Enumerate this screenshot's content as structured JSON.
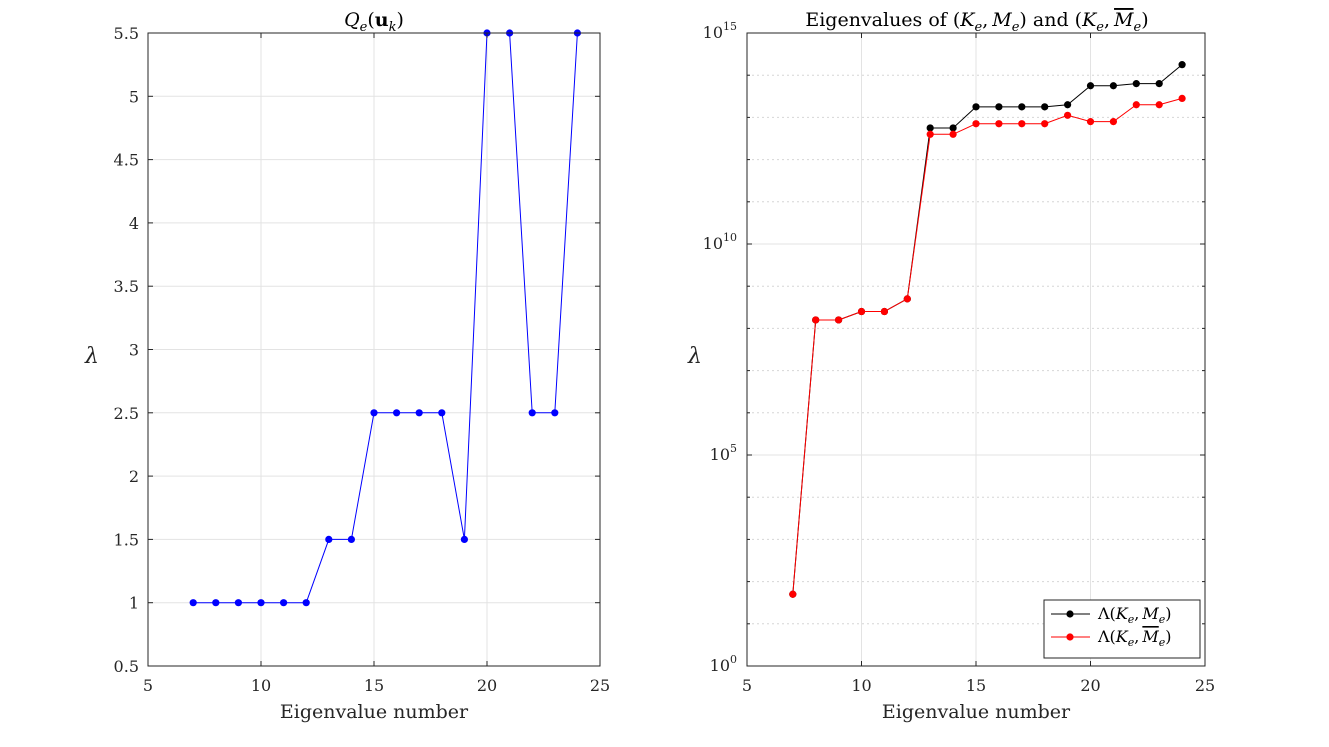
{
  "chart_data": [
    {
      "type": "line",
      "title": "Q_e(u_k)",
      "title_parts": [
        "Q",
        "e",
        "(",
        "u",
        "k",
        ")"
      ],
      "xlabel": "Eigenvalue number",
      "ylabel": "λ",
      "xlim": [
        5,
        25
      ],
      "ylim": [
        0.5,
        5.5
      ],
      "yscale": "linear",
      "xticks": [
        5,
        10,
        15,
        20,
        25
      ],
      "xtick_labels": [
        "5",
        "10",
        "15",
        "20",
        "25"
      ],
      "yticks": [
        0.5,
        1,
        1.5,
        2,
        2.5,
        3,
        3.5,
        4,
        4.5,
        5,
        5.5
      ],
      "ytick_labels": [
        "0.5",
        "1",
        "1.5",
        "2",
        "2.5",
        "3",
        "3.5",
        "4",
        "4.5",
        "5",
        "5.5"
      ],
      "grid": true,
      "x": [
        7,
        8,
        9,
        10,
        11,
        12,
        13,
        14,
        15,
        16,
        17,
        18,
        19,
        20,
        21,
        22,
        23,
        24
      ],
      "series": [
        {
          "name": "Q_e(u_k)",
          "color": "#0000ff",
          "values": [
            1,
            1,
            1,
            1,
            1,
            1,
            1.5,
            1.5,
            2.5,
            2.5,
            2.5,
            2.5,
            1.5,
            5.5,
            5.5,
            2.5,
            2.5,
            5.5
          ]
        }
      ]
    },
    {
      "type": "line",
      "title_text": "Eigenvalues of",
      "title_and": "and",
      "title_pair1": [
        "(",
        "K",
        "e",
        ",",
        "M",
        "e",
        ")"
      ],
      "title_pair2": [
        "(",
        "K",
        "e",
        ",",
        "M",
        "e",
        ")"
      ],
      "xlabel": "Eigenvalue number",
      "ylabel": "λ",
      "xlim": [
        5,
        25
      ],
      "ylim_log10": [
        0,
        15
      ],
      "yscale": "log",
      "xticks": [
        5,
        10,
        15,
        20,
        25
      ],
      "xtick_labels": [
        "5",
        "10",
        "15",
        "20",
        "25"
      ],
      "yticks_log10": [
        0,
        5,
        10,
        15
      ],
      "ytick_bases": [
        "10",
        "10",
        "10",
        "10"
      ],
      "ytick_exponents": [
        "0",
        "5",
        "10",
        "15"
      ],
      "grid": true,
      "legend_position": "bottom-right",
      "x": [
        7,
        8,
        9,
        10,
        11,
        12,
        13,
        14,
        15,
        16,
        17,
        18,
        19,
        20,
        21,
        22,
        23,
        24
      ],
      "series": [
        {
          "name": "Λ(K_e, M_e)",
          "legend_parts": [
            "Λ(",
            "K",
            "e",
            ",",
            "M",
            "e",
            ")"
          ],
          "color": "#000000",
          "log10_values": [
            1.7,
            8.2,
            8.2,
            8.4,
            8.4,
            8.7,
            12.75,
            12.75,
            13.25,
            13.25,
            13.25,
            13.25,
            13.3,
            13.75,
            13.75,
            13.8,
            13.8,
            14.25
          ]
        },
        {
          "name": "Λ(K_e, M̄_e)",
          "legend_parts": [
            "Λ(",
            "K",
            "e",
            ",",
            "M",
            "e",
            ")"
          ],
          "color": "#ff0000",
          "log10_values": [
            1.7,
            8.2,
            8.2,
            8.4,
            8.4,
            8.7,
            12.6,
            12.6,
            12.85,
            12.85,
            12.85,
            12.85,
            13.05,
            12.9,
            12.9,
            13.3,
            13.3,
            13.45
          ]
        }
      ]
    }
  ]
}
